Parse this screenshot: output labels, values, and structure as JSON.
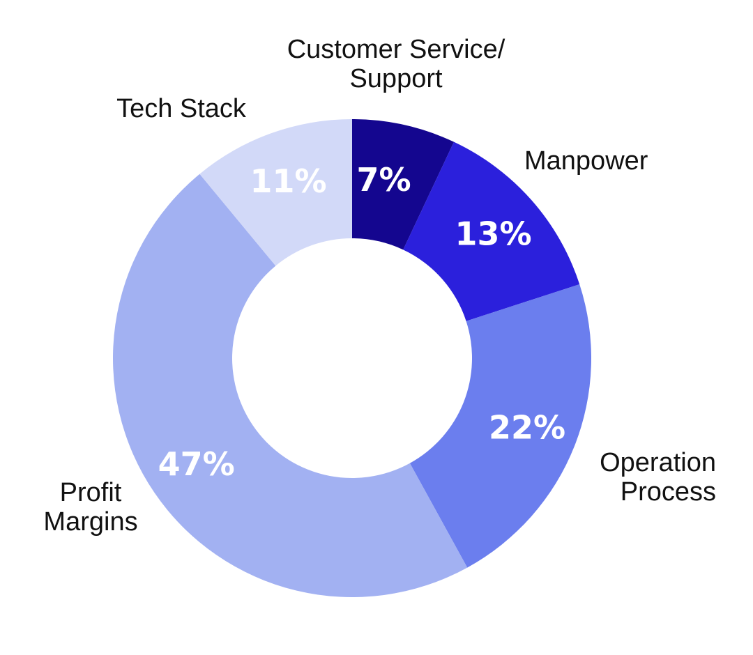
{
  "chart_data": {
    "type": "pie",
    "donut": true,
    "slices": [
      {
        "label": "Customer Service/\nSupport",
        "value": 7,
        "value_label": "7%",
        "color": "#14068f"
      },
      {
        "label": "Manpower",
        "value": 13,
        "value_label": "13%",
        "color": "#2b20dc"
      },
      {
        "label": "Operation\nProcess",
        "value": 22,
        "value_label": "22%",
        "color": "#6b7eee"
      },
      {
        "label": "Profit\nMargins",
        "value": 47,
        "value_label": "47%",
        "color": "#a2b1f2"
      },
      {
        "label": "Tech Stack",
        "value": 11,
        "value_label": "11%",
        "color": "#d2d9f8"
      }
    ],
    "start_angle_deg": 0,
    "direction": "clockwise",
    "legend": "none"
  }
}
